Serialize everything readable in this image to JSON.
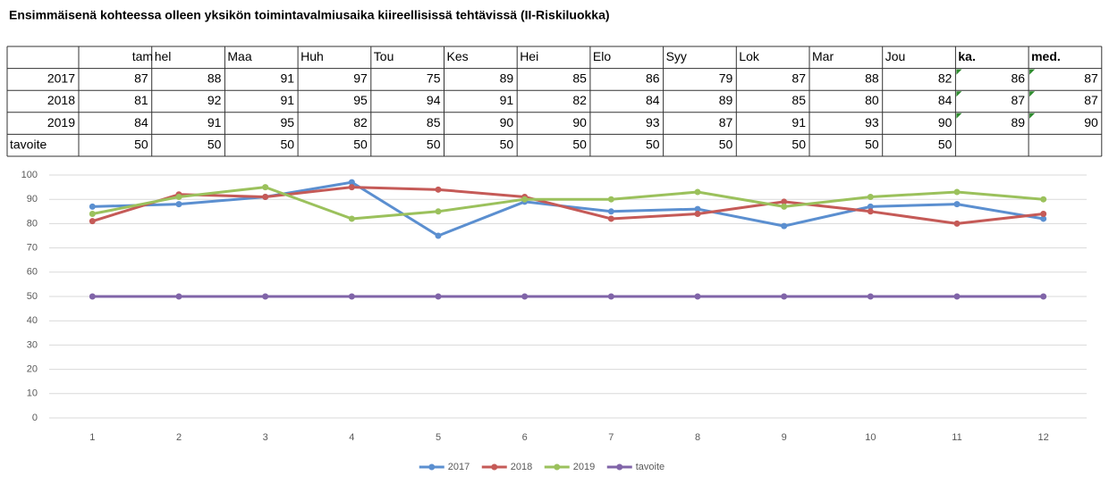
{
  "title": "Ensimmäisenä kohteessa olleen yksikön toimintavalmiusaika kiireellisissä tehtävissä (II-Riskiluokka)",
  "table": {
    "columns": [
      "tam",
      "hel",
      "Maa",
      "Huh",
      "Tou",
      "Kes",
      "Hei",
      "Elo",
      "Syy",
      "Lok",
      "Mar",
      "Jou",
      "ka.",
      "med."
    ],
    "rows": [
      {
        "label": "2017",
        "cells": [
          87,
          88,
          91,
          97,
          75,
          89,
          85,
          86,
          79,
          87,
          88,
          82,
          86,
          87
        ]
      },
      {
        "label": "2018",
        "cells": [
          81,
          92,
          91,
          95,
          94,
          91,
          82,
          84,
          89,
          85,
          80,
          84,
          87,
          87
        ]
      },
      {
        "label": "2019",
        "cells": [
          84,
          91,
          95,
          82,
          85,
          90,
          90,
          93,
          87,
          91,
          93,
          90,
          89,
          90
        ]
      },
      {
        "label": "tavoite",
        "cells": [
          50,
          50,
          50,
          50,
          50,
          50,
          50,
          50,
          50,
          50,
          50,
          50
        ]
      }
    ]
  },
  "chart_data": {
    "type": "line",
    "categories": [
      1,
      2,
      3,
      4,
      5,
      6,
      7,
      8,
      9,
      10,
      11,
      12
    ],
    "series": [
      {
        "name": "2017",
        "color": "#5b8fd0",
        "values": [
          87,
          88,
          91,
          97,
          75,
          89,
          85,
          86,
          79,
          87,
          88,
          82
        ]
      },
      {
        "name": "2018",
        "color": "#c55a57",
        "values": [
          81,
          92,
          91,
          95,
          94,
          91,
          82,
          84,
          89,
          85,
          80,
          84
        ]
      },
      {
        "name": "2019",
        "color": "#9bc15c",
        "values": [
          84,
          91,
          95,
          82,
          85,
          90,
          90,
          93,
          87,
          91,
          93,
          90
        ]
      },
      {
        "name": "tavoite",
        "color": "#8064a8",
        "values": [
          50,
          50,
          50,
          50,
          50,
          50,
          50,
          50,
          50,
          50,
          50,
          50
        ]
      }
    ],
    "ylim": [
      0,
      100
    ],
    "yticks": [
      0,
      10,
      20,
      30,
      40,
      50,
      60,
      70,
      80,
      90,
      100
    ],
    "grid": true,
    "legend": "bottom"
  }
}
